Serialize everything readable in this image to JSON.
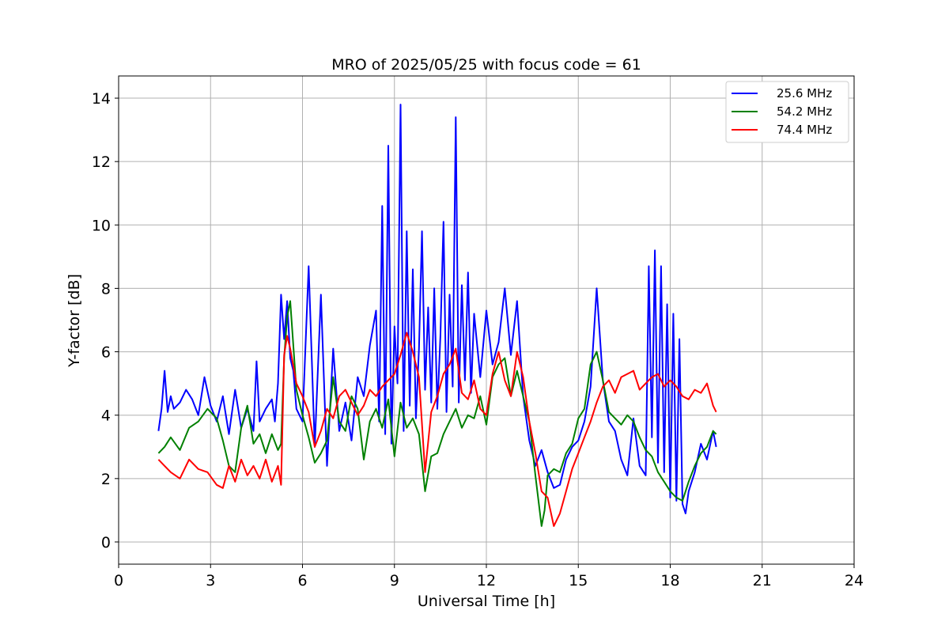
{
  "chart_data": {
    "type": "line",
    "title": "MRO of 2025/05/25 with focus code = 61",
    "xlabel": "Universal Time [h]",
    "ylabel": "Y-factor [dB]",
    "xlim": [
      0,
      24
    ],
    "ylim": [
      -0.7,
      14.7
    ],
    "xticks": [
      0,
      3,
      6,
      9,
      12,
      15,
      18,
      21,
      24
    ],
    "yticks": [
      0,
      2,
      4,
      6,
      8,
      10,
      12,
      14
    ],
    "grid": true,
    "legend_position": "top-right",
    "series": [
      {
        "name": "25.6 MHz",
        "color": "#0000ff",
        "x": [
          1.3,
          1.4,
          1.5,
          1.6,
          1.7,
          1.8,
          2.0,
          2.2,
          2.4,
          2.6,
          2.8,
          3.0,
          3.2,
          3.4,
          3.5,
          3.6,
          3.8,
          4.0,
          4.2,
          4.4,
          4.5,
          4.6,
          4.8,
          5.0,
          5.1,
          5.2,
          5.3,
          5.4,
          5.5,
          5.6,
          5.7,
          5.8,
          6.0,
          6.2,
          6.4,
          6.6,
          6.8,
          7.0,
          7.2,
          7.4,
          7.6,
          7.8,
          8.0,
          8.2,
          8.4,
          8.5,
          8.6,
          8.7,
          8.8,
          8.9,
          9.0,
          9.1,
          9.2,
          9.3,
          9.4,
          9.5,
          9.6,
          9.7,
          9.8,
          9.9,
          10.0,
          10.1,
          10.2,
          10.3,
          10.4,
          10.5,
          10.6,
          10.7,
          10.8,
          10.9,
          11.0,
          11.1,
          11.2,
          11.3,
          11.4,
          11.5,
          11.6,
          11.8,
          12.0,
          12.2,
          12.4,
          12.6,
          12.8,
          13.0,
          13.2,
          13.4,
          13.6,
          13.8,
          14.0,
          14.2,
          14.4,
          14.6,
          14.8,
          15.0,
          15.2,
          15.4,
          15.6,
          15.8,
          16.0,
          16.2,
          16.4,
          16.6,
          16.8,
          17.0,
          17.2,
          17.3,
          17.4,
          17.5,
          17.6,
          17.7,
          17.8,
          17.9,
          18.0,
          18.1,
          18.2,
          18.3,
          18.4,
          18.5,
          18.6,
          18.8,
          19.0,
          19.2,
          19.4,
          19.5
        ],
        "y": [
          3.5,
          4.2,
          5.4,
          4.1,
          4.6,
          4.2,
          4.4,
          4.8,
          4.5,
          4.0,
          5.2,
          4.3,
          3.8,
          4.6,
          4.0,
          3.4,
          4.8,
          3.6,
          4.2,
          3.5,
          5.7,
          3.8,
          4.2,
          4.5,
          3.8,
          5.0,
          7.8,
          6.4,
          7.6,
          5.8,
          5.4,
          4.2,
          3.8,
          8.7,
          3.0,
          7.8,
          2.4,
          6.1,
          3.5,
          4.4,
          3.2,
          5.2,
          4.6,
          6.2,
          7.3,
          3.8,
          10.6,
          3.4,
          12.5,
          3.1,
          6.8,
          5.0,
          13.8,
          3.5,
          9.8,
          4.3,
          8.6,
          3.9,
          6.1,
          9.8,
          4.8,
          7.4,
          4.4,
          8.0,
          4.2,
          6.5,
          10.1,
          4.1,
          7.8,
          4.9,
          13.4,
          4.4,
          8.1,
          5.1,
          8.5,
          4.7,
          7.2,
          5.2,
          7.3,
          5.6,
          6.3,
          8.0,
          5.9,
          7.6,
          4.6,
          3.2,
          2.4,
          2.9,
          2.2,
          1.7,
          1.8,
          2.6,
          3.0,
          3.2,
          3.8,
          4.9,
          8.0,
          5.1,
          3.8,
          3.5,
          2.6,
          2.1,
          3.9,
          2.4,
          2.1,
          8.7,
          3.3,
          9.2,
          2.5,
          8.7,
          2.2,
          7.5,
          1.4,
          7.2,
          1.3,
          6.4,
          1.2,
          0.9,
          1.6,
          2.2,
          3.1,
          2.6,
          3.5,
          3.0
        ]
      },
      {
        "name": "54.2 MHz",
        "color": "#008000",
        "x": [
          1.3,
          1.5,
          1.7,
          2.0,
          2.3,
          2.6,
          2.9,
          3.2,
          3.4,
          3.6,
          3.8,
          4.0,
          4.2,
          4.4,
          4.6,
          4.8,
          5.0,
          5.2,
          5.3,
          5.4,
          5.5,
          5.6,
          5.8,
          6.0,
          6.2,
          6.4,
          6.6,
          6.8,
          7.0,
          7.2,
          7.4,
          7.6,
          7.8,
          8.0,
          8.2,
          8.4,
          8.6,
          8.8,
          9.0,
          9.2,
          9.4,
          9.6,
          9.8,
          10.0,
          10.2,
          10.4,
          10.6,
          10.8,
          11.0,
          11.2,
          11.4,
          11.6,
          11.8,
          12.0,
          12.2,
          12.4,
          12.6,
          12.8,
          13.0,
          13.2,
          13.4,
          13.6,
          13.8,
          13.9,
          14.0,
          14.2,
          14.4,
          14.6,
          14.8,
          15.0,
          15.2,
          15.4,
          15.6,
          15.8,
          16.0,
          16.2,
          16.4,
          16.6,
          16.8,
          17.0,
          17.2,
          17.4,
          17.6,
          17.8,
          18.0,
          18.2,
          18.4,
          18.6,
          18.8,
          19.0,
          19.2,
          19.4,
          19.5
        ],
        "y": [
          2.8,
          3.0,
          3.3,
          2.9,
          3.6,
          3.8,
          4.2,
          3.9,
          3.2,
          2.4,
          2.2,
          3.6,
          4.3,
          3.1,
          3.4,
          2.8,
          3.4,
          2.9,
          3.1,
          5.8,
          7.1,
          7.6,
          4.8,
          4.0,
          3.3,
          2.5,
          2.8,
          3.2,
          5.2,
          3.8,
          3.5,
          4.6,
          4.2,
          2.6,
          3.8,
          4.2,
          3.6,
          4.5,
          2.7,
          4.4,
          3.6,
          3.9,
          3.4,
          1.6,
          2.7,
          2.8,
          3.4,
          3.8,
          4.2,
          3.6,
          4.0,
          3.9,
          4.6,
          3.7,
          5.2,
          5.6,
          5.8,
          4.6,
          5.4,
          4.6,
          3.8,
          2.1,
          0.5,
          1.0,
          2.1,
          2.3,
          2.2,
          2.8,
          3.1,
          3.9,
          4.2,
          5.6,
          6.0,
          5.1,
          4.1,
          3.9,
          3.7,
          4.0,
          3.8,
          3.3,
          2.9,
          2.7,
          2.2,
          1.9,
          1.6,
          1.4,
          1.3,
          1.9,
          2.4,
          2.8,
          3.0,
          3.5,
          3.4
        ]
      },
      {
        "name": "74.4 MHz",
        "color": "#ff0000",
        "x": [
          1.3,
          1.5,
          1.7,
          2.0,
          2.3,
          2.6,
          2.9,
          3.2,
          3.4,
          3.6,
          3.8,
          4.0,
          4.2,
          4.4,
          4.6,
          4.8,
          5.0,
          5.2,
          5.3,
          5.4,
          5.5,
          5.6,
          5.8,
          6.0,
          6.2,
          6.4,
          6.6,
          6.8,
          7.0,
          7.2,
          7.4,
          7.6,
          7.8,
          8.0,
          8.2,
          8.4,
          8.6,
          8.8,
          9.0,
          9.2,
          9.4,
          9.6,
          9.8,
          10.0,
          10.2,
          10.4,
          10.6,
          10.8,
          11.0,
          11.2,
          11.4,
          11.6,
          11.8,
          12.0,
          12.2,
          12.4,
          12.6,
          12.8,
          13.0,
          13.2,
          13.4,
          13.6,
          13.8,
          14.0,
          14.2,
          14.4,
          14.6,
          14.8,
          15.0,
          15.2,
          15.4,
          15.6,
          15.8,
          16.0,
          16.2,
          16.4,
          16.6,
          16.8,
          17.0,
          17.2,
          17.4,
          17.6,
          17.8,
          18.0,
          18.2,
          18.4,
          18.6,
          18.8,
          19.0,
          19.2,
          19.4,
          19.5
        ],
        "y": [
          2.6,
          2.4,
          2.2,
          2.0,
          2.6,
          2.3,
          2.2,
          1.8,
          1.7,
          2.4,
          1.9,
          2.6,
          2.1,
          2.4,
          2.0,
          2.6,
          1.9,
          2.4,
          1.8,
          5.9,
          6.5,
          6.1,
          5.0,
          4.6,
          4.1,
          3.0,
          3.5,
          4.2,
          3.9,
          4.6,
          4.8,
          4.4,
          4.0,
          4.3,
          4.8,
          4.6,
          4.9,
          5.1,
          5.3,
          5.9,
          6.6,
          6.0,
          5.2,
          2.2,
          4.1,
          4.6,
          5.3,
          5.6,
          6.1,
          4.7,
          4.5,
          5.1,
          4.2,
          4.0,
          5.3,
          6.0,
          5.1,
          4.6,
          6.0,
          5.2,
          3.8,
          2.8,
          1.6,
          1.4,
          0.5,
          0.9,
          1.6,
          2.3,
          2.8,
          3.3,
          3.8,
          4.4,
          4.9,
          5.1,
          4.7,
          5.2,
          5.3,
          5.4,
          4.8,
          5.0,
          5.2,
          5.3,
          4.9,
          5.1,
          4.9,
          4.6,
          4.5,
          4.8,
          4.7,
          5.0,
          4.3,
          4.1
        ]
      }
    ]
  }
}
